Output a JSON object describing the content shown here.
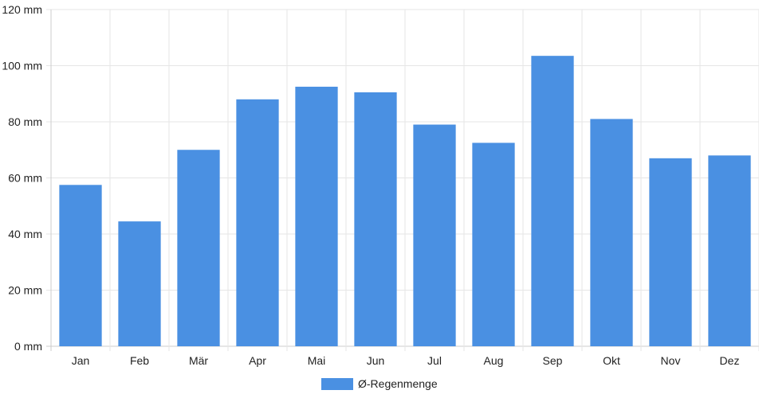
{
  "chart_data": {
    "type": "bar",
    "categories": [
      "Jan",
      "Feb",
      "Mär",
      "Apr",
      "Mai",
      "Jun",
      "Jul",
      "Aug",
      "Sep",
      "Okt",
      "Nov",
      "Dez"
    ],
    "series": [
      {
        "name": "Ø-Regenmenge",
        "values": [
          57.5,
          44.5,
          70,
          88,
          92.5,
          90.5,
          79,
          72.5,
          103.5,
          81,
          67,
          68
        ]
      }
    ],
    "y_ticks": [
      "0 mm",
      "20 mm",
      "40 mm",
      "60 mm",
      "80 mm",
      "100 mm",
      "120 mm"
    ],
    "ylim": [
      0,
      120
    ],
    "y_unit": "mm",
    "grid": true,
    "legend_position": "bottom-center",
    "colors": {
      "bar": "#4a90e2",
      "grid": "#e6e6e6",
      "axis": "#cccccc",
      "text": "#222222"
    }
  }
}
